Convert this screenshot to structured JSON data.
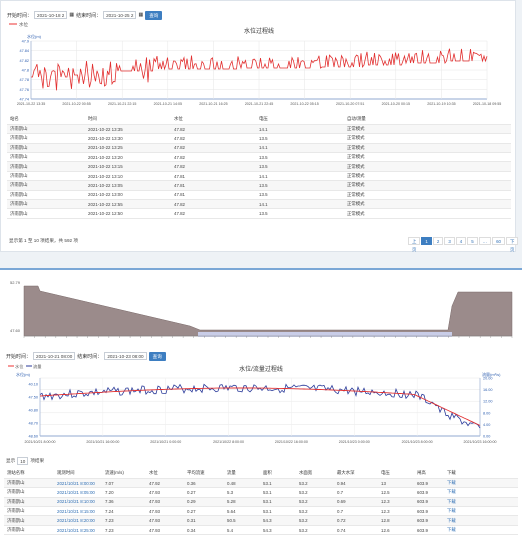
{
  "top": {
    "start_label": "开始时间：",
    "start_value": "2021-10-18 2",
    "end_label": "结束时间：",
    "end_value": "2021-10-25 2",
    "query_label": "查询",
    "legend_name": "水位",
    "chart_title": "水位过程线",
    "y_unit": "水位(m)",
    "y_ticks": [
      "47.9",
      "47.84",
      "47.82",
      "47.8",
      "47.78",
      "47.76",
      "47.74"
    ],
    "x_ticks": [
      "2021-10-22 13:35",
      "2021-10-22 00:55",
      "2021-10-21 22:15",
      "2021-10-21 14:05",
      "2021-10-21 16:25",
      "2021-10-21 22:45",
      "2021-10-22 05:15",
      "2021-10-20 07:51",
      "2021-10-20 00:15",
      "2021-10-19 10:35",
      "2021-10-18 09:55"
    ],
    "table_headers": [
      "站名",
      "时间",
      "水位",
      "电压",
      "自动/测量"
    ],
    "rows": [
      [
        "济南鹊山",
        "2021-10-22 13:35",
        "47.82",
        "14.1",
        "正常模式"
      ],
      [
        "济南鹊山",
        "2021-10-22 13:30",
        "47.82",
        "13.5",
        "正常模式"
      ],
      [
        "济南鹊山",
        "2021-10-22 13:25",
        "47.82",
        "14.1",
        "正常模式"
      ],
      [
        "济南鹊山",
        "2021-10-22 13:20",
        "47.82",
        "13.5",
        "正常模式"
      ],
      [
        "济南鹊山",
        "2021-10-22 13:15",
        "47.82",
        "13.5",
        "正常模式"
      ],
      [
        "济南鹊山",
        "2021-10-22 13:10",
        "47.81",
        "14.1",
        "正常模式"
      ],
      [
        "济南鹊山",
        "2021-10-22 13:05",
        "47.81",
        "13.5",
        "正常模式"
      ],
      [
        "济南鹊山",
        "2021-10-22 13:00",
        "47.81",
        "13.5",
        "正常模式"
      ],
      [
        "济南鹊山",
        "2021-10-22 12:55",
        "47.82",
        "14.1",
        "正常模式"
      ],
      [
        "济南鹊山",
        "2021-10-22 12:50",
        "47.82",
        "13.5",
        "正常模式"
      ]
    ],
    "info": "显示第 1 至 10 项结果，共 592 项",
    "pages": [
      "上页",
      "1",
      "2",
      "3",
      "4",
      "5",
      "…",
      "60",
      "下页"
    ]
  },
  "bottom": {
    "overview_ymax": "52.79",
    "overview_ymin": "47.60",
    "start_label": "开始时间：",
    "start_value": "2021-10-21 08:00",
    "end_label": "结束时间：",
    "end_value": "2021-10-23 08:00",
    "query_label": "查询",
    "chart_title": "水位/流量过程线",
    "legend_level": "水位",
    "legend_flow": "流量",
    "y_left_unit": "水位(m)",
    "y_right_unit": "流量(m³/s)",
    "y_left_ticks": [
      "40.10",
      "47.50",
      "40.80",
      "48.70",
      "48.60"
    ],
    "y_right_ticks": [
      "20.00",
      "16.00",
      "12.00",
      "8.00",
      "4.00",
      "0.00"
    ],
    "x_ticks": [
      "2021/10/21 8:00:00",
      "2021/10/21 16:00:00",
      "2021/10/21 0:00:00",
      "2021/10/22 8:00:00",
      "2021/10/22 16:00:00",
      "2021/10/23 0:00:00",
      "2021/10/23 8:00:00",
      "2021/10/23 16:00:00"
    ],
    "show_label": "显示",
    "show_value": "10",
    "show_suffix": "项结果",
    "table_headers": [
      "测站名称",
      "观测时间",
      "流速(m/s)",
      "水位",
      "平均流速",
      "流量",
      "面积",
      "水面宽",
      "最大水深",
      "电压",
      "闸高",
      "下载"
    ],
    "rows": [
      [
        "济南鹊山",
        "2021/10/21 8:00:00",
        "7.07",
        "47.92",
        "0.36",
        "0.48",
        "53.1",
        "53.2",
        "0.94",
        "13",
        "603.9",
        "下载"
      ],
      [
        "济南鹊山",
        "2021/10/21 8:05:00",
        "7.20",
        "47.93",
        "0.27",
        "5.3",
        "53.1",
        "53.2",
        "0.7",
        "12.5",
        "603.9",
        "下载"
      ],
      [
        "济南鹊山",
        "2021/10/21 8:10:00",
        "7.36",
        "47.93",
        "0.29",
        "5.28",
        "53.1",
        "53.2",
        "0.69",
        "12.3",
        "603.9",
        "下载"
      ],
      [
        "济南鹊山",
        "2021/10/21 8:15:00",
        "7.24",
        "47.93",
        "0.27",
        "5.64",
        "53.1",
        "53.2",
        "0.7",
        "12.3",
        "603.9",
        "下载"
      ],
      [
        "济南鹊山",
        "2021/10/21 8:20:00",
        "7.23",
        "47.93",
        "0.31",
        "50.5",
        "54.3",
        "53.2",
        "0.72",
        "12.8",
        "603.9",
        "下载"
      ],
      [
        "济南鹊山",
        "2021/10/21 8:25:00",
        "7.23",
        "47.93",
        "0.34",
        "5.4",
        "54.3",
        "53.2",
        "0.74",
        "12.6",
        "603.9",
        "下载"
      ]
    ]
  }
}
